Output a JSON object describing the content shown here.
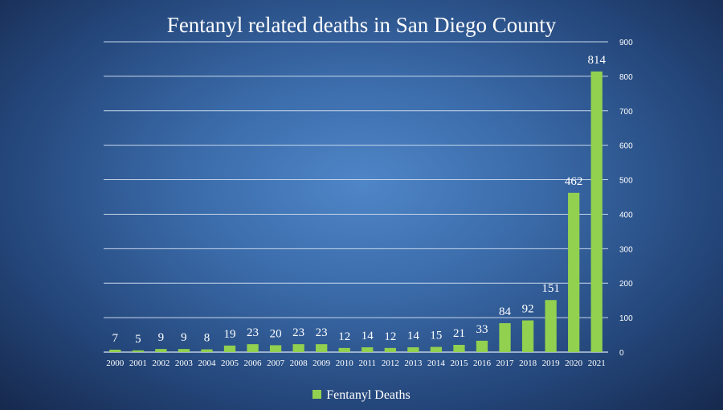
{
  "chart_data": {
    "type": "bar",
    "title": "Fentanyl related deaths in San Diego County",
    "categories": [
      "2000",
      "2001",
      "2002",
      "2003",
      "2004",
      "2005",
      "2006",
      "2007",
      "2008",
      "2009",
      "2010",
      "2011",
      "2012",
      "2013",
      "2014",
      "2015",
      "2016",
      "2017",
      "2018",
      "2019",
      "2020",
      "2021"
    ],
    "series": [
      {
        "name": "Fentanyl Deaths",
        "values": [
          7,
          5,
          9,
          9,
          8,
          19,
          23,
          20,
          23,
          23,
          12,
          14,
          12,
          14,
          15,
          21,
          33,
          84,
          92,
          151,
          462,
          814
        ],
        "color": "#92d050"
      }
    ],
    "ylim": [
      0,
      900
    ],
    "yticks": [
      0,
      100,
      200,
      300,
      400,
      500,
      600,
      700,
      800,
      900
    ],
    "y_axis_side": "right",
    "grid": true,
    "legend_position": "bottom",
    "data_labels": true
  }
}
